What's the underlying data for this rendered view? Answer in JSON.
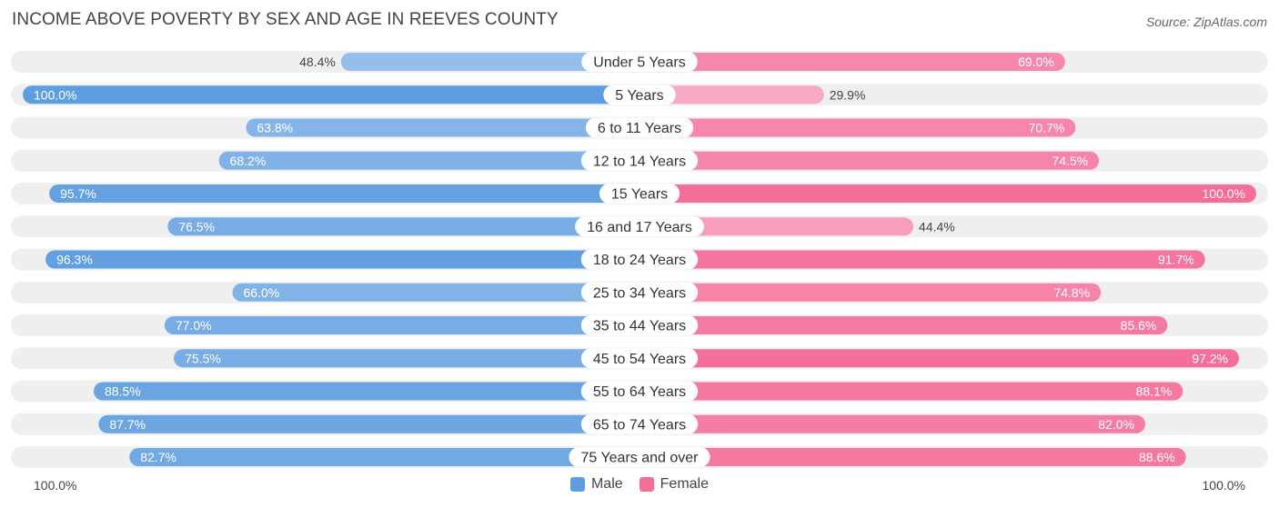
{
  "chart_data": {
    "type": "bar",
    "orientation": "horizontal-diverging",
    "title": "INCOME ABOVE POVERTY BY SEX AND AGE IN REEVES COUNTY",
    "source": "Source: ZipAtlas.com",
    "categories": [
      "Under 5 Years",
      "5 Years",
      "6 to 11 Years",
      "12 to 14 Years",
      "15 Years",
      "16 and 17 Years",
      "18 to 24 Years",
      "25 to 34 Years",
      "35 to 44 Years",
      "45 to 54 Years",
      "55 to 64 Years",
      "65 to 74 Years",
      "75 Years and over"
    ],
    "series": [
      {
        "name": "Male",
        "values": [
          48.4,
          100.0,
          63.8,
          68.2,
          95.7,
          76.5,
          96.3,
          66.0,
          77.0,
          75.5,
          88.5,
          87.7,
          82.7
        ],
        "labels": [
          "48.4%",
          "100.0%",
          "63.8%",
          "68.2%",
          "95.7%",
          "76.5%",
          "96.3%",
          "66.0%",
          "77.0%",
          "75.5%",
          "88.5%",
          "87.7%",
          "82.7%"
        ]
      },
      {
        "name": "Female",
        "values": [
          69.0,
          29.9,
          70.7,
          74.5,
          100.0,
          44.4,
          91.7,
          74.8,
          85.6,
          97.2,
          88.1,
          82.0,
          88.6
        ],
        "labels": [
          "69.0%",
          "29.9%",
          "70.7%",
          "74.5%",
          "100.0%",
          "44.4%",
          "91.7%",
          "74.8%",
          "85.6%",
          "97.2%",
          "88.1%",
          "82.0%",
          "88.6%"
        ]
      }
    ],
    "xlim": [
      0,
      100
    ],
    "axis_left_label": "100.0%",
    "axis_right_label": "100.0%",
    "legend_position": "bottom-center",
    "colors": {
      "male_strong": "#5e9ee0",
      "male_light": "#a9c9ef",
      "female_strong": "#f46e98",
      "female_light": "#f8aac3",
      "track": "#efefef"
    }
  }
}
